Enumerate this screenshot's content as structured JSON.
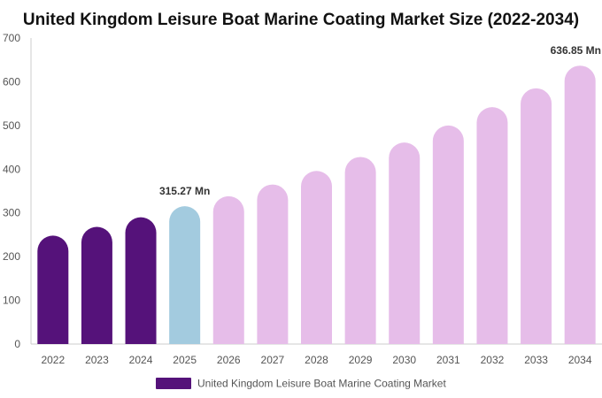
{
  "chart_data": {
    "type": "bar",
    "title": "United Kingdom Leisure Boat Marine Coating Market Size (2022-2034)",
    "xlabel": "",
    "ylabel": "",
    "ylim": [
      0,
      700
    ],
    "y_ticks": [
      0,
      100,
      200,
      300,
      400,
      500,
      600,
      700
    ],
    "grid": false,
    "legend_position": "bottom",
    "categories": [
      "2022",
      "2023",
      "2024",
      "2025",
      "2026",
      "2027",
      "2028",
      "2029",
      "2030",
      "2031",
      "2032",
      "2033",
      "2034"
    ],
    "series": [
      {
        "name": "United Kingdom Leisure Boat Marine Coating Market",
        "values": [
          248,
          268,
          290,
          315.27,
          338,
          365,
          396,
          428,
          461,
          500,
          542,
          585,
          636.85
        ]
      }
    ],
    "bar_colors": [
      "#55127a",
      "#55127a",
      "#55127a",
      "#a3cbdf",
      "#e6bde9",
      "#e6bde9",
      "#e6bde9",
      "#e6bde9",
      "#e6bde9",
      "#e6bde9",
      "#e6bde9",
      "#e6bde9",
      "#e6bde9"
    ],
    "legend_color": "#55127a",
    "data_labels": [
      {
        "category": "2025",
        "text": "315.27 Mn"
      },
      {
        "category": "2034",
        "text": "636.85 Mn"
      }
    ]
  }
}
